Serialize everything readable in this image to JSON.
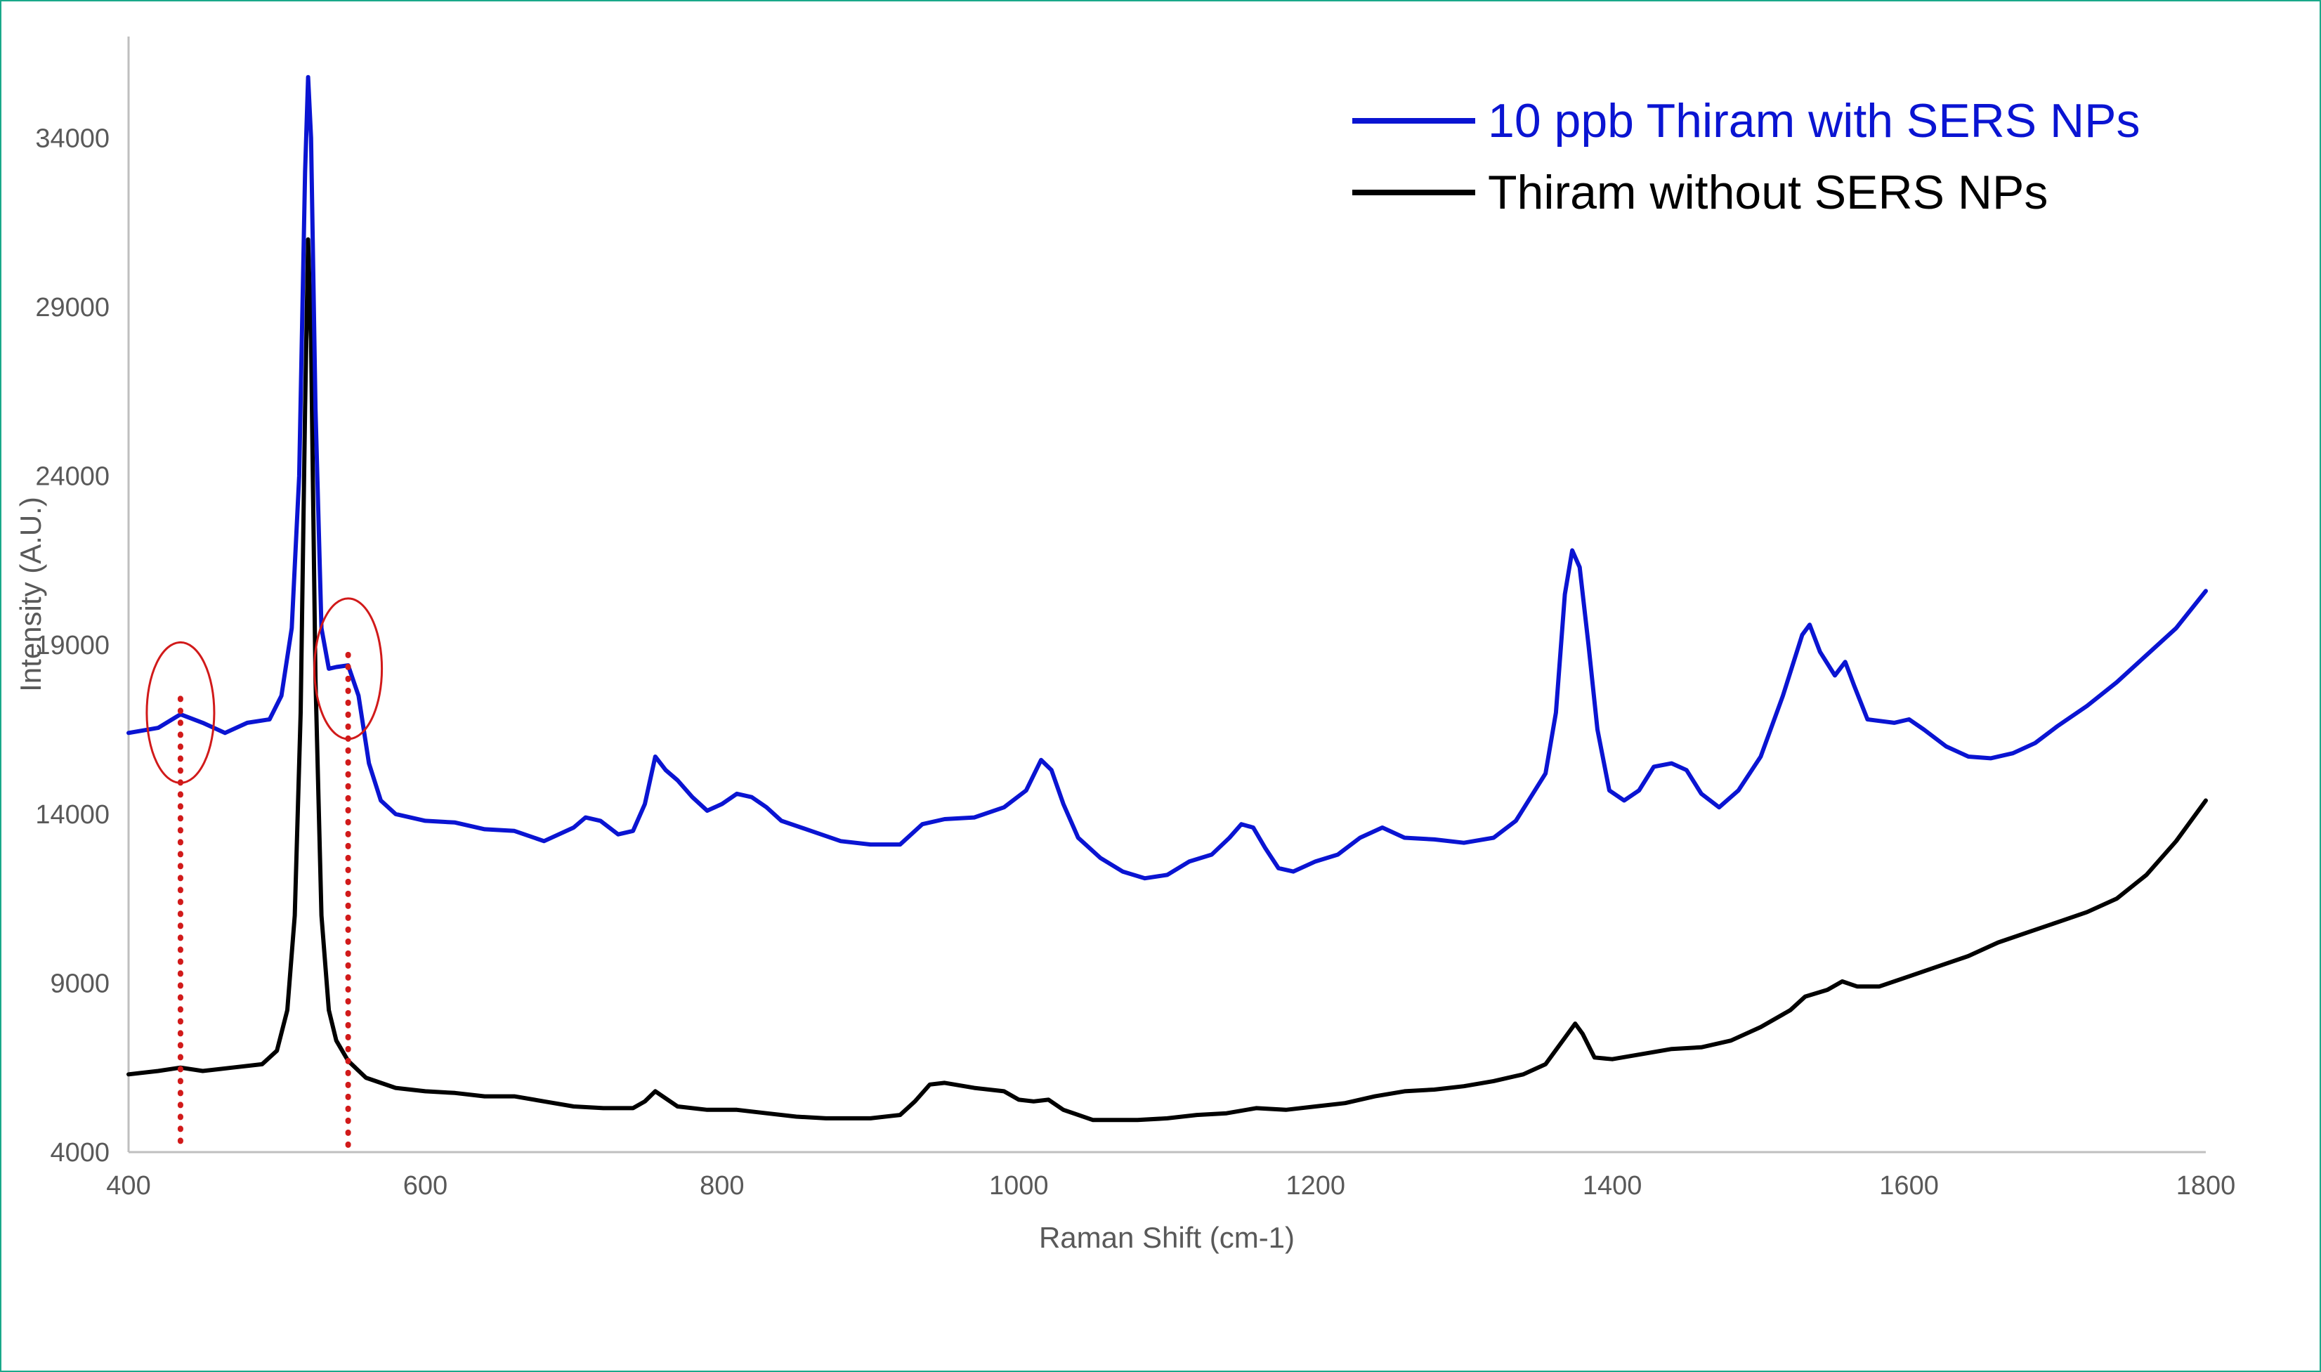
{
  "chart_data": {
    "type": "line",
    "xlabel": "Raman Shift (cm-1)",
    "ylabel": "Intensity (A.U.)",
    "xlim": [
      400,
      1800
    ],
    "ylim": [
      4000,
      37000
    ],
    "x_ticks": [
      "400",
      "600",
      "800",
      "1000",
      "1200",
      "1400",
      "1600",
      "1800"
    ],
    "y_ticks": [
      "4000",
      "9000",
      "14000",
      "19000",
      "24000",
      "29000",
      "34000"
    ],
    "grid": false,
    "legend_position": "top-right",
    "series": [
      {
        "name": "10 ppb Thiram with SERS NPs",
        "color": "#0a14d2",
        "points": [
          [
            400,
            16400
          ],
          [
            420,
            16550
          ],
          [
            435,
            16950
          ],
          [
            450,
            16700
          ],
          [
            465,
            16400
          ],
          [
            480,
            16700
          ],
          [
            495,
            16800
          ],
          [
            503,
            17500
          ],
          [
            510,
            19500
          ],
          [
            515,
            24000
          ],
          [
            519,
            33000
          ],
          [
            521,
            35800
          ],
          [
            523,
            34000
          ],
          [
            526,
            26000
          ],
          [
            530,
            19500
          ],
          [
            535,
            18300
          ],
          [
            540,
            18350
          ],
          [
            548,
            18400
          ],
          [
            555,
            17500
          ],
          [
            562,
            15500
          ],
          [
            570,
            14400
          ],
          [
            580,
            14000
          ],
          [
            600,
            13800
          ],
          [
            620,
            13750
          ],
          [
            640,
            13550
          ],
          [
            660,
            13500
          ],
          [
            680,
            13200
          ],
          [
            700,
            13600
          ],
          [
            708,
            13900
          ],
          [
            718,
            13800
          ],
          [
            730,
            13400
          ],
          [
            740,
            13500
          ],
          [
            748,
            14300
          ],
          [
            755,
            15700
          ],
          [
            762,
            15300
          ],
          [
            770,
            15000
          ],
          [
            780,
            14500
          ],
          [
            790,
            14100
          ],
          [
            800,
            14300
          ],
          [
            810,
            14600
          ],
          [
            820,
            14500
          ],
          [
            830,
            14200
          ],
          [
            840,
            13800
          ],
          [
            860,
            13500
          ],
          [
            880,
            13200
          ],
          [
            900,
            13100
          ],
          [
            920,
            13100
          ],
          [
            935,
            13700
          ],
          [
            950,
            13850
          ],
          [
            970,
            13900
          ],
          [
            990,
            14200
          ],
          [
            1005,
            14700
          ],
          [
            1015,
            15600
          ],
          [
            1022,
            15300
          ],
          [
            1030,
            14300
          ],
          [
            1040,
            13300
          ],
          [
            1055,
            12700
          ],
          [
            1070,
            12300
          ],
          [
            1085,
            12100
          ],
          [
            1100,
            12200
          ],
          [
            1115,
            12600
          ],
          [
            1130,
            12800
          ],
          [
            1142,
            13300
          ],
          [
            1150,
            13700
          ],
          [
            1158,
            13600
          ],
          [
            1166,
            13000
          ],
          [
            1175,
            12400
          ],
          [
            1185,
            12300
          ],
          [
            1200,
            12600
          ],
          [
            1215,
            12800
          ],
          [
            1230,
            13300
          ],
          [
            1245,
            13600
          ],
          [
            1260,
            13300
          ],
          [
            1280,
            13250
          ],
          [
            1300,
            13150
          ],
          [
            1320,
            13300
          ],
          [
            1335,
            13800
          ],
          [
            1345,
            14500
          ],
          [
            1355,
            15200
          ],
          [
            1362,
            17000
          ],
          [
            1368,
            20500
          ],
          [
            1373,
            21800
          ],
          [
            1378,
            21300
          ],
          [
            1384,
            19000
          ],
          [
            1390,
            16500
          ],
          [
            1398,
            14700
          ],
          [
            1408,
            14400
          ],
          [
            1418,
            14700
          ],
          [
            1428,
            15400
          ],
          [
            1440,
            15500
          ],
          [
            1450,
            15300
          ],
          [
            1460,
            14600
          ],
          [
            1472,
            14200
          ],
          [
            1485,
            14700
          ],
          [
            1500,
            15700
          ],
          [
            1515,
            17500
          ],
          [
            1528,
            19300
          ],
          [
            1533,
            19600
          ],
          [
            1540,
            18800
          ],
          [
            1550,
            18100
          ],
          [
            1557,
            18500
          ],
          [
            1563,
            17800
          ],
          [
            1572,
            16800
          ],
          [
            1590,
            16700
          ],
          [
            1600,
            16800
          ],
          [
            1610,
            16500
          ],
          [
            1625,
            16000
          ],
          [
            1640,
            15700
          ],
          [
            1655,
            15650
          ],
          [
            1670,
            15800
          ],
          [
            1685,
            16100
          ],
          [
            1700,
            16600
          ],
          [
            1720,
            17200
          ],
          [
            1740,
            17900
          ],
          [
            1760,
            18700
          ],
          [
            1780,
            19500
          ],
          [
            1800,
            20600
          ]
        ]
      },
      {
        "name": "Thiram without SERS NPs",
        "color": "#000000",
        "points": [
          [
            400,
            6300
          ],
          [
            420,
            6400
          ],
          [
            435,
            6500
          ],
          [
            450,
            6400
          ],
          [
            470,
            6500
          ],
          [
            490,
            6600
          ],
          [
            500,
            7000
          ],
          [
            507,
            8200
          ],
          [
            512,
            11000
          ],
          [
            516,
            17000
          ],
          [
            519,
            26000
          ],
          [
            521,
            31000
          ],
          [
            523,
            28000
          ],
          [
            526,
            18000
          ],
          [
            530,
            11000
          ],
          [
            535,
            8200
          ],
          [
            540,
            7300
          ],
          [
            548,
            6700
          ],
          [
            560,
            6200
          ],
          [
            580,
            5900
          ],
          [
            600,
            5800
          ],
          [
            620,
            5750
          ],
          [
            640,
            5650
          ],
          [
            660,
            5650
          ],
          [
            680,
            5500
          ],
          [
            700,
            5350
          ],
          [
            720,
            5300
          ],
          [
            740,
            5300
          ],
          [
            748,
            5500
          ],
          [
            755,
            5800
          ],
          [
            760,
            5650
          ],
          [
            770,
            5350
          ],
          [
            790,
            5250
          ],
          [
            810,
            5250
          ],
          [
            830,
            5150
          ],
          [
            850,
            5050
          ],
          [
            870,
            5000
          ],
          [
            900,
            5000
          ],
          [
            920,
            5100
          ],
          [
            930,
            5500
          ],
          [
            940,
            6000
          ],
          [
            950,
            6050
          ],
          [
            970,
            5900
          ],
          [
            990,
            5800
          ],
          [
            1000,
            5550
          ],
          [
            1010,
            5500
          ],
          [
            1020,
            5550
          ],
          [
            1030,
            5250
          ],
          [
            1050,
            4950
          ],
          [
            1080,
            4950
          ],
          [
            1100,
            5000
          ],
          [
            1120,
            5100
          ],
          [
            1140,
            5150
          ],
          [
            1160,
            5300
          ],
          [
            1180,
            5250
          ],
          [
            1200,
            5350
          ],
          [
            1220,
            5450
          ],
          [
            1240,
            5650
          ],
          [
            1260,
            5800
          ],
          [
            1280,
            5850
          ],
          [
            1300,
            5950
          ],
          [
            1320,
            6100
          ],
          [
            1340,
            6300
          ],
          [
            1355,
            6600
          ],
          [
            1365,
            7200
          ],
          [
            1375,
            7800
          ],
          [
            1380,
            7500
          ],
          [
            1388,
            6800
          ],
          [
            1400,
            6750
          ],
          [
            1420,
            6900
          ],
          [
            1440,
            7050
          ],
          [
            1460,
            7100
          ],
          [
            1480,
            7300
          ],
          [
            1500,
            7700
          ],
          [
            1520,
            8200
          ],
          [
            1530,
            8600
          ],
          [
            1545,
            8800
          ],
          [
            1555,
            9050
          ],
          [
            1565,
            8900
          ],
          [
            1580,
            8900
          ],
          [
            1600,
            9200
          ],
          [
            1620,
            9500
          ],
          [
            1640,
            9800
          ],
          [
            1660,
            10200
          ],
          [
            1680,
            10500
          ],
          [
            1700,
            10800
          ],
          [
            1720,
            11100
          ],
          [
            1740,
            11500
          ],
          [
            1760,
            12200
          ],
          [
            1780,
            13200
          ],
          [
            1800,
            14400
          ]
        ]
      }
    ],
    "annotations": {
      "marked_peaks": [
        {
          "x": 435,
          "y": 17000
        },
        {
          "x": 548,
          "y": 18300
        }
      ]
    }
  }
}
